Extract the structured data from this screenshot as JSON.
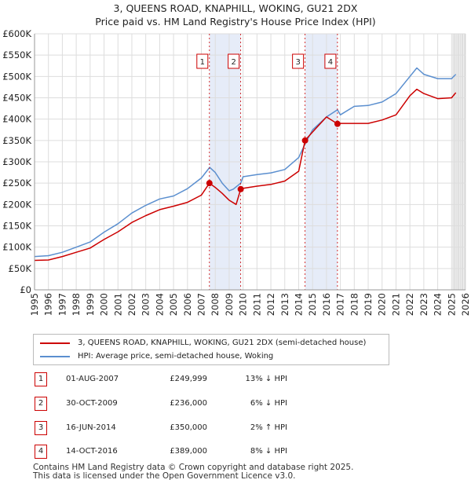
{
  "title_line1": "3, QUEENS ROAD, KNAPHILL, WOKING, GU21 2DX",
  "title_line2": "Price paid vs. HM Land Registry's House Price Index (HPI)",
  "colors": {
    "property_line": "#cc0000",
    "hpi_line": "#5b8fcf",
    "shade": "#e6ecf8",
    "grid": "#dddddd",
    "marker_box": "#cc0000"
  },
  "legend": {
    "property_label": "3, QUEENS ROAD, KNAPHILL, WOKING, GU21 2DX (semi-detached house)",
    "hpi_label": "HPI: Average price, semi-detached house, Woking"
  },
  "sales": [
    {
      "id": "1",
      "date": "01-AUG-2007",
      "price": "£249,999",
      "hpi": "13% ↓ HPI"
    },
    {
      "id": "2",
      "date": "30-OCT-2009",
      "price": "£236,000",
      "hpi": "6% ↓ HPI"
    },
    {
      "id": "3",
      "date": "16-JUN-2014",
      "price": "£350,000",
      "hpi": "2% ↑ HPI"
    },
    {
      "id": "4",
      "date": "14-OCT-2016",
      "price": "£389,000",
      "hpi": "8% ↓ HPI"
    }
  ],
  "footer_line1": "Contains HM Land Registry data © Crown copyright and database right 2025.",
  "footer_line2": "This data is licensed under the Open Government Licence v3.0.",
  "chart_data": {
    "type": "line",
    "xlim": [
      1995,
      2026
    ],
    "ylim": [
      0,
      600000
    ],
    "x_ticks": [
      1995,
      1996,
      1997,
      1998,
      1999,
      2000,
      2001,
      2002,
      2003,
      2004,
      2005,
      2006,
      2007,
      2008,
      2009,
      2010,
      2011,
      2012,
      2013,
      2014,
      2015,
      2016,
      2017,
      2018,
      2019,
      2020,
      2021,
      2022,
      2023,
      2024,
      2025,
      2026
    ],
    "y_ticks": [
      0,
      50000,
      100000,
      150000,
      200000,
      250000,
      300000,
      350000,
      400000,
      450000,
      500000,
      550000,
      600000
    ],
    "y_tick_labels": [
      "£0",
      "£50K",
      "£100K",
      "£150K",
      "£200K",
      "£250K",
      "£300K",
      "£350K",
      "£400K",
      "£450K",
      "£500K",
      "£550K",
      "£600K"
    ],
    "grid": true,
    "shaded_periods": [
      [
        2007.58,
        2009.83
      ],
      [
        2014.46,
        2016.79
      ]
    ],
    "future_hatch_from": 2025.1,
    "series": [
      {
        "name": "HPI: Average price, semi-detached house, Woking",
        "x": [
          1995,
          1996,
          1997,
          1998,
          1999,
          2000,
          2001,
          2002,
          2003,
          2004,
          2005,
          2006,
          2007,
          2007.6,
          2008,
          2008.5,
          2009,
          2009.3,
          2009.83,
          2010,
          2011,
          2012,
          2013,
          2014,
          2014.46,
          2015,
          2016,
          2016.79,
          2017,
          2018,
          2019,
          2020,
          2021,
          2022,
          2022.5,
          2023,
          2024,
          2025,
          2025.3
        ],
        "values": [
          78000,
          80000,
          88000,
          100000,
          112000,
          135000,
          155000,
          180000,
          198000,
          213000,
          220000,
          237000,
          262000,
          287000,
          275000,
          250000,
          232000,
          236000,
          250000,
          265000,
          270000,
          274000,
          282000,
          310000,
          342000,
          375000,
          405000,
          422000,
          410000,
          430000,
          432000,
          440000,
          460000,
          500000,
          520000,
          505000,
          495000,
          495000,
          505000
        ]
      },
      {
        "name": "3, QUEENS ROAD, KNAPHILL, WOKING, GU21 2DX (semi-detached house)",
        "x": [
          1995,
          1996,
          1997,
          1998,
          1999,
          2000,
          2001,
          2002,
          2003,
          2004,
          2005,
          2006,
          2007,
          2007.58,
          2008,
          2008.5,
          2009,
          2009.5,
          2009.83,
          2010,
          2011,
          2012,
          2013,
          2014,
          2014.46,
          2015,
          2016,
          2016.79,
          2017,
          2018,
          2019,
          2020,
          2021,
          2022,
          2022.5,
          2023,
          2024,
          2025,
          2025.3
        ],
        "values": [
          69000,
          70000,
          78000,
          88000,
          98000,
          118000,
          136000,
          158000,
          174000,
          188000,
          196000,
          205000,
          222000,
          249999,
          240000,
          226000,
          210000,
          200000,
          236000,
          238000,
          243000,
          247000,
          255000,
          278000,
          350000,
          370000,
          405000,
          389000,
          390000,
          390000,
          390000,
          398000,
          410000,
          455000,
          470000,
          460000,
          448000,
          450000,
          462000
        ]
      }
    ],
    "sale_markers": [
      {
        "label": "1",
        "x": 2007.58,
        "y": 249999
      },
      {
        "label": "2",
        "x": 2009.83,
        "y": 236000
      },
      {
        "label": "3",
        "x": 2014.46,
        "y": 350000
      },
      {
        "label": "4",
        "x": 2016.79,
        "y": 389000
      }
    ]
  }
}
